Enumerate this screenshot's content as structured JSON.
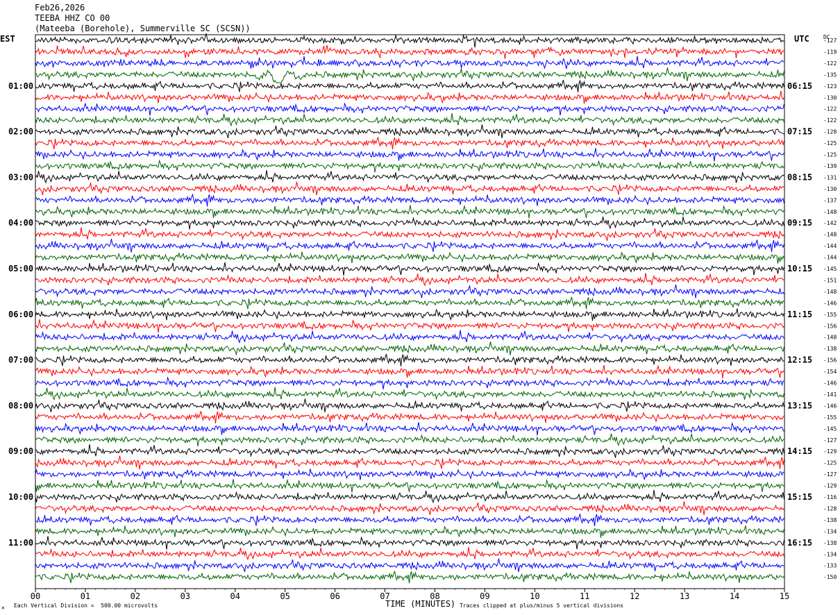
{
  "header": {
    "date": "Feb26,2026",
    "channel": "TEEBA HHZ CO 00",
    "station": "(Mateeba (Borehole), Summerville SC (SCSN))"
  },
  "axes": {
    "left_label": "EST",
    "right_label": "UTC",
    "dc_label": "DC",
    "xlabel": "TIME (MINUTES)"
  },
  "footer": {
    "scale_note": "Each Vertical Division =  500.00 microvolts",
    "clip_note": "Traces clipped at plus/minus 5 vertical divisions"
  },
  "colors": {
    "trace_cycle": [
      "#000000",
      "#ff0000",
      "#0000ff",
      "#006400"
    ],
    "background": "#ffffff",
    "grid": "#000000"
  },
  "chart_data": {
    "type": "line",
    "title": "TEEBA HHZ CO 00",
    "xlabel": "TIME (MINUTES)",
    "xlim": [
      0,
      15
    ],
    "x_ticks": [
      "00",
      "01",
      "02",
      "03",
      "04",
      "05",
      "06",
      "07",
      "08",
      "09",
      "10",
      "11",
      "12",
      "13",
      "14",
      "15"
    ],
    "minutes_per_trace": 15,
    "trace_count": 48,
    "left_ticks": [
      "01:00",
      "02:00",
      "03:00",
      "04:00",
      "05:00",
      "06:00",
      "07:00",
      "08:00",
      "09:00",
      "10:00",
      "11:00"
    ],
    "right_ticks": [
      "06:15",
      "07:15",
      "08:15",
      "09:15",
      "10:15",
      "11:15",
      "12:15",
      "13:15",
      "14:15",
      "15:15",
      "16:15"
    ],
    "first_labeled_trace": 4,
    "traces_per_label": 4,
    "dc_offsets": [
      -127,
      -119,
      -122,
      -135,
      -123,
      -130,
      -122,
      -122,
      -128,
      -125,
      -125,
      -139,
      -131,
      -130,
      -137,
      -148,
      -142,
      -148,
      -144,
      -144,
      -145,
      -151,
      -148,
      -146,
      -155,
      -156,
      -148,
      -138,
      -156,
      -154,
      -146,
      -141,
      -146,
      -155,
      -145,
      -127,
      -129,
      -125,
      -127,
      -129,
      -116,
      -128,
      -138,
      -134,
      -138,
      -134,
      -133,
      -150
    ],
    "notable_events": [
      {
        "trace": 3,
        "start_min": 4.3,
        "end_min": 5.5,
        "description": "long-period wave"
      }
    ],
    "grid": false
  }
}
